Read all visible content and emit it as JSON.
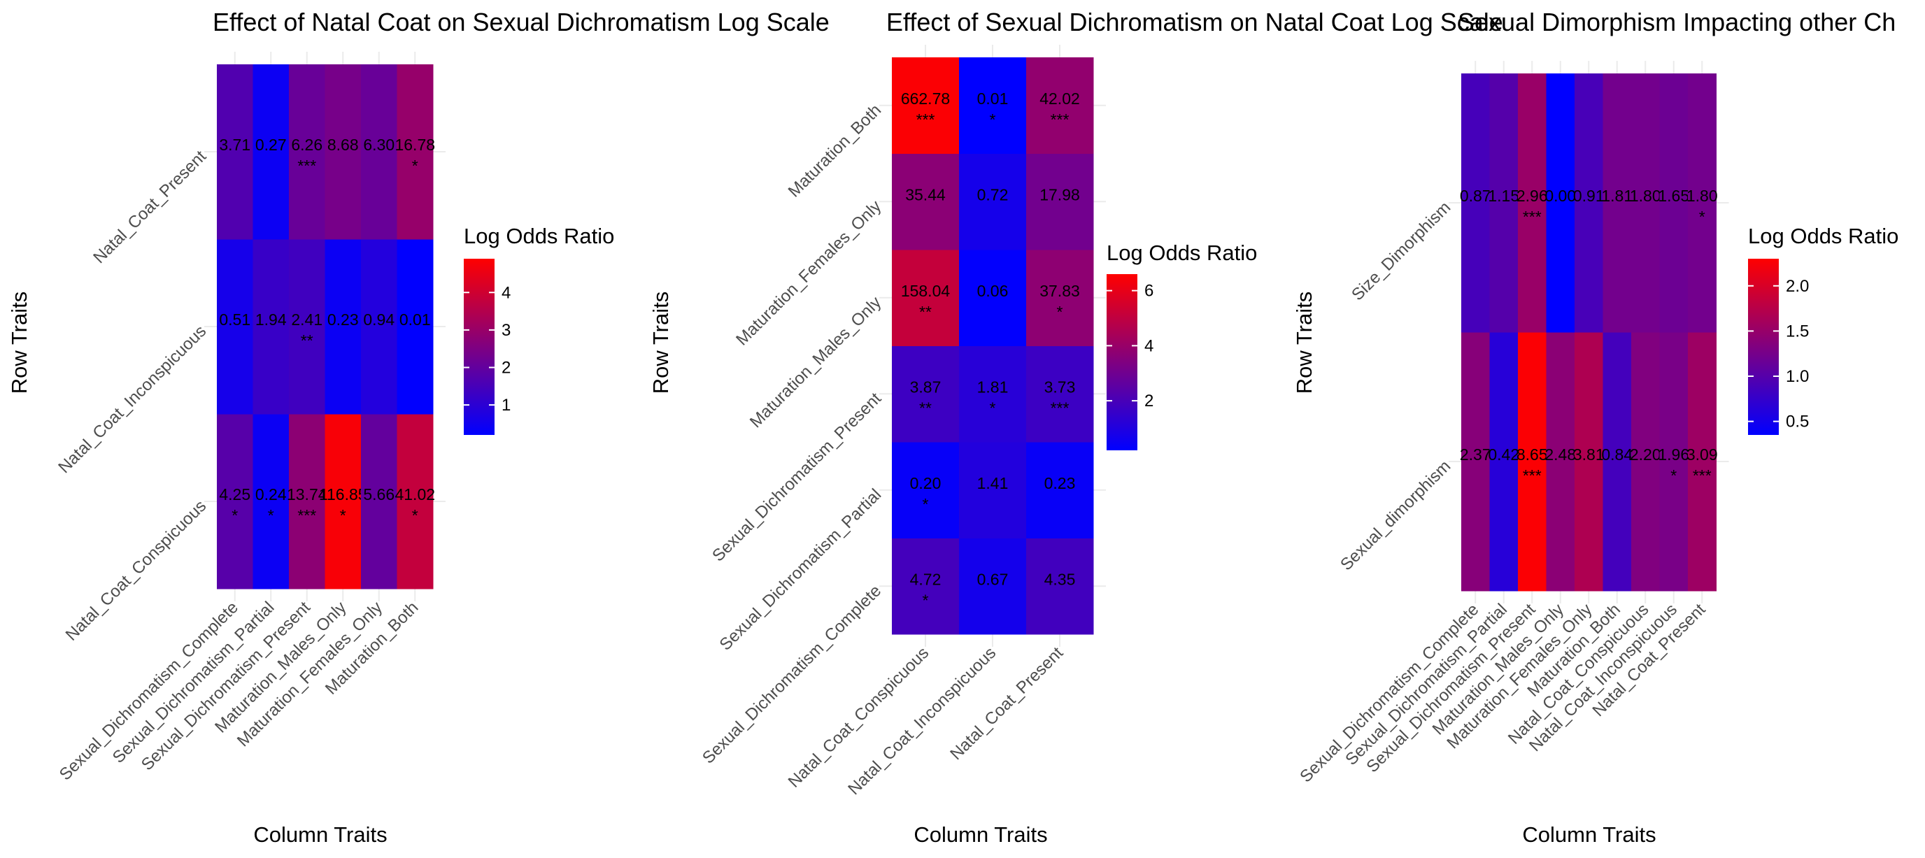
{
  "colors": {
    "low": "#0000FF",
    "mid": "#800080",
    "high": "#FF0000",
    "grid": "#ebebeb"
  },
  "chart_data": [
    {
      "type": "heatmap",
      "title": "Effect of Natal Coat on Sexual Dichromatism Log Scale",
      "xlabel": "Column Traits",
      "ylabel": "Row Traits",
      "legend_title": "Log Odds Ratio",
      "legend_placement": "right",
      "grid": true,
      "x_categories": [
        "Sexual_Dichromatism_Complete",
        "Sexual_Dichromatism_Partial",
        "Sexual_Dichromatism_Present",
        "Maturation_Males_Only",
        "Maturation_Females_Only",
        "Maturation_Both"
      ],
      "y_categories": [
        "Natal_Coat_Conspicuous",
        "Natal_Coat_Inconspicuous",
        "Natal_Coat_Present"
      ],
      "values": [
        [
          4.25,
          0.24,
          13.74,
          116.85,
          5.66,
          41.02
        ],
        [
          0.51,
          1.94,
          2.41,
          0.23,
          0.94,
          0.01
        ],
        [
          3.71,
          0.27,
          6.26,
          8.68,
          6.3,
          16.78
        ]
      ],
      "labels": [
        [
          "4.25",
          "0.24",
          "13.74",
          "116.85",
          "5.66",
          "41.02"
        ],
        [
          "0.51",
          "1.94",
          "2.41",
          "0.23",
          "0.94",
          "0.01"
        ],
        [
          "3.71",
          "0.27",
          "6.26",
          "8.68",
          "6.30",
          "16.78"
        ]
      ],
      "significance": [
        [
          "*",
          "*",
          "***",
          "*",
          "",
          "*"
        ],
        [
          "",
          "",
          "**",
          "",
          "",
          ""
        ],
        [
          "",
          "",
          "***",
          "",
          "",
          "*"
        ]
      ],
      "fill_range": [
        0.2,
        4.9
      ],
      "legend_ticks": [
        1,
        2,
        3,
        4
      ]
    },
    {
      "type": "heatmap",
      "title": "Effect of Sexual Dichromatism on Natal Coat Log Scale",
      "xlabel": "Column Traits",
      "ylabel": "Row Traits",
      "legend_title": "Log Odds Ratio",
      "legend_placement": "right",
      "grid": true,
      "x_categories": [
        "Natal_Coat_Conspicuous",
        "Natal_Coat_Inconspicuous",
        "Natal_Coat_Present"
      ],
      "y_categories": [
        "Sexual_Dichromatism_Complete",
        "Sexual_Dichromatism_Partial",
        "Sexual_Dichromatism_Present",
        "Maturation_Males_Only",
        "Maturation_Females_Only",
        "Maturation_Both"
      ],
      "values": [
        [
          4.72,
          0.67,
          4.35
        ],
        [
          0.2,
          1.41,
          0.23
        ],
        [
          3.87,
          1.81,
          3.73
        ],
        [
          158.04,
          0.06,
          37.83
        ],
        [
          35.44,
          0.72,
          17.98
        ],
        [
          662.78,
          0.01,
          42.02
        ]
      ],
      "labels": [
        [
          "4.72",
          "0.67",
          "4.35"
        ],
        [
          "0.20",
          "1.41",
          "0.23"
        ],
        [
          "3.87",
          "1.81",
          "3.73"
        ],
        [
          "158.04",
          "0.06",
          "37.83"
        ],
        [
          "35.44",
          "0.72",
          "17.98"
        ],
        [
          "662.78",
          "0.01",
          "42.02"
        ]
      ],
      "significance": [
        [
          "*",
          "",
          ""
        ],
        [
          "*",
          "",
          ""
        ],
        [
          "**",
          "*",
          "***"
        ],
        [
          "**",
          "",
          "*"
        ],
        [
          "",
          "",
          ""
        ],
        [
          "***",
          "*",
          "***"
        ]
      ],
      "fill_range": [
        0.2,
        6.6
      ],
      "legend_ticks": [
        2,
        4,
        6
      ]
    },
    {
      "type": "heatmap",
      "title": "Sexual Dimorphism Impacting other Ch",
      "xlabel": "Column Traits",
      "ylabel": "Row Traits",
      "legend_title": "Log Odds Ratio",
      "legend_placement": "right",
      "grid": true,
      "x_categories": [
        "Sexual_Dichromatism_Complete",
        "Sexual_Dichromatism_Partial",
        "Sexual_Dichromatism_Present",
        "Maturation_Males_Only",
        "Maturation_Females_Only",
        "Maturation_Both",
        "Natal_Coat_Conspicuous",
        "Natal_Coat_Inconspicuous",
        "Natal_Coat_Present"
      ],
      "y_categories": [
        "Sexual_dimorphism",
        "Size_Dimorphism"
      ],
      "values": [
        [
          2.37,
          0.42,
          8.65,
          2.48,
          3.81,
          0.84,
          2.2,
          1.96,
          3.09
        ],
        [
          0.87,
          1.15,
          2.96,
          0.0,
          0.91,
          1.81,
          1.8,
          1.65,
          1.8
        ]
      ],
      "labels": [
        [
          "2.37",
          "0.42",
          "8.65",
          "2.48",
          "3.81",
          "0.84",
          "2.20",
          "1.96",
          "3.09"
        ],
        [
          "0.87",
          "1.15",
          "2.96",
          "0.00",
          "0.91",
          "1.81",
          "1.80",
          "1.65",
          "1.80"
        ]
      ],
      "significance": [
        [
          "",
          "",
          "***",
          "",
          "",
          "",
          "",
          "*",
          "***"
        ],
        [
          "",
          "",
          "***",
          "",
          "",
          "",
          "",
          "",
          "*"
        ]
      ],
      "fill_range": [
        0.35,
        2.3
      ],
      "legend_ticks": [
        0.5,
        1.0,
        1.5,
        2.0
      ]
    }
  ]
}
